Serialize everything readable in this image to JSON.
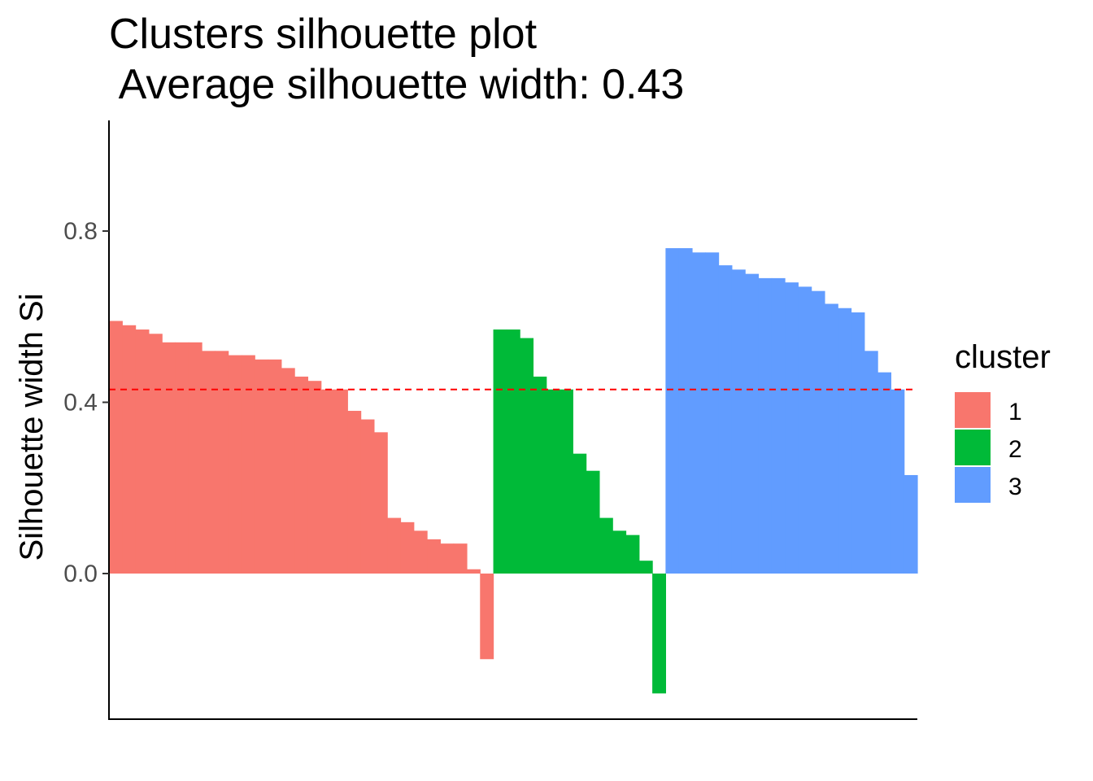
{
  "chart_data": {
    "type": "bar",
    "title": "Clusters silhouette plot",
    "subtitle": " Average silhouette width: 0.43",
    "xlabel": "",
    "ylabel": "Silhouette width Si",
    "ylim": [
      -0.34,
      1.06
    ],
    "yticks": [
      0.0,
      0.4,
      0.8
    ],
    "ytick_labels": [
      "0.0",
      "0.4",
      "0.8"
    ],
    "average_line": 0.43,
    "average_line_color": "#ff0000",
    "grid": false,
    "legend": {
      "title": "cluster",
      "placement": "right"
    },
    "series": [
      {
        "name": "1",
        "color": "#f8766d",
        "values": [
          0.59,
          0.58,
          0.57,
          0.56,
          0.54,
          0.54,
          0.54,
          0.52,
          0.52,
          0.51,
          0.51,
          0.5,
          0.5,
          0.48,
          0.46,
          0.45,
          0.43,
          0.43,
          0.38,
          0.36,
          0.33,
          0.13,
          0.12,
          0.1,
          0.08,
          0.07,
          0.07,
          0.01,
          -0.2
        ]
      },
      {
        "name": "2",
        "color": "#00ba38",
        "values": [
          0.57,
          0.57,
          0.55,
          0.46,
          0.43,
          0.43,
          0.28,
          0.24,
          0.13,
          0.1,
          0.09,
          0.03,
          -0.28
        ]
      },
      {
        "name": "3",
        "color": "#619cff",
        "values": [
          0.76,
          0.76,
          0.75,
          0.75,
          0.72,
          0.71,
          0.7,
          0.69,
          0.69,
          0.68,
          0.67,
          0.66,
          0.63,
          0.62,
          0.61,
          0.52,
          0.47,
          0.43,
          0.23
        ]
      }
    ]
  }
}
